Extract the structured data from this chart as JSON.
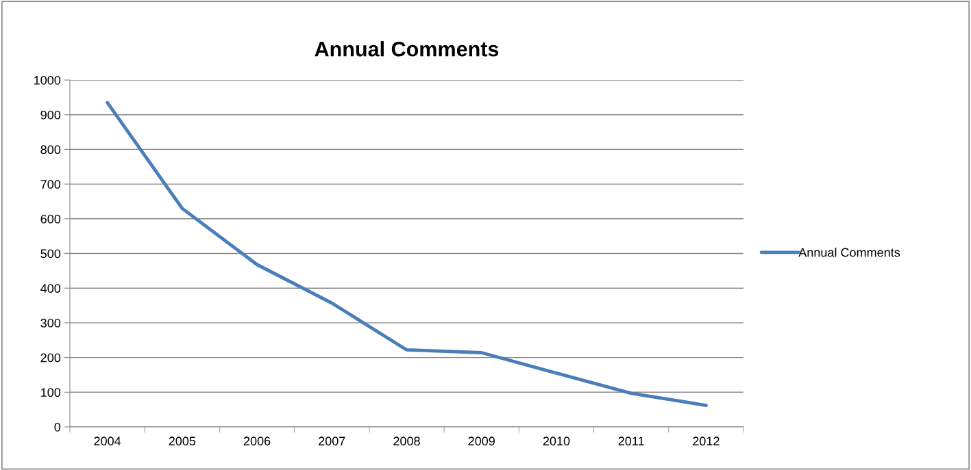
{
  "chart_data": {
    "type": "line",
    "title": "Annual Comments",
    "categories": [
      "2004",
      "2005",
      "2006",
      "2007",
      "2008",
      "2009",
      "2010",
      "2011",
      "2012"
    ],
    "series": [
      {
        "name": "Annual Comments",
        "color": "#4a7ebb",
        "values": [
          935,
          630,
          468,
          357,
          222,
          214,
          155,
          97,
          62
        ]
      }
    ],
    "ylim": [
      0,
      1000
    ],
    "yticks": [
      0,
      100,
      200,
      300,
      400,
      500,
      600,
      700,
      800,
      900,
      1000
    ],
    "grid": "y",
    "legend": "right",
    "marker": "none",
    "line_style": "solid"
  }
}
